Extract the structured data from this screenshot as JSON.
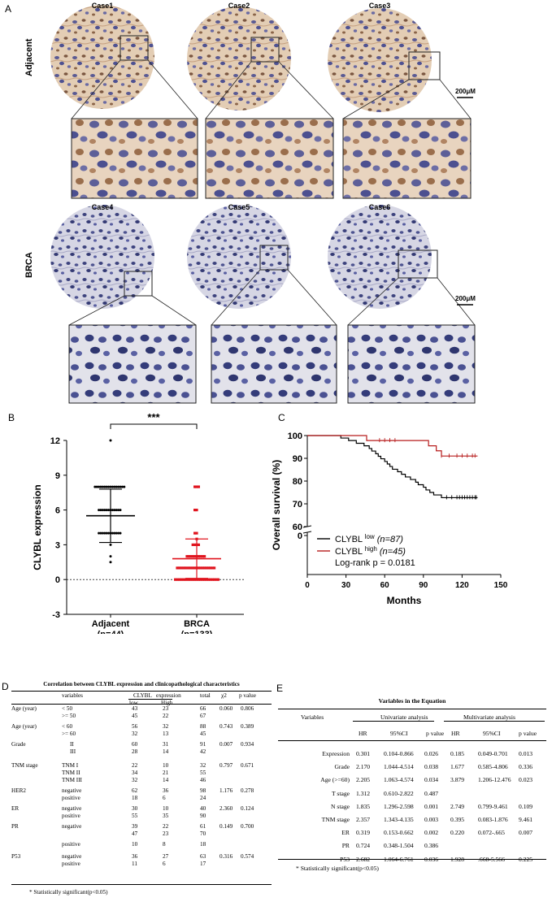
{
  "panelA": {
    "label": "A",
    "row_labels": [
      "Adjacent",
      "BRCA"
    ],
    "cases": [
      "Case1",
      "Case2",
      "Case3",
      "Case4",
      "Case5",
      "Case6"
    ],
    "scale_bar": "200μM"
  },
  "panelB": {
    "label": "B"
  },
  "panelC": {
    "label": "C"
  },
  "panelD": {
    "label": "D",
    "title": "Correlation between CLYBL expression and clinicopathological characteristics",
    "headers": {
      "variables": "variables",
      "clybl": "CLYBL",
      "expression": "expression",
      "low": "low",
      "high": "High",
      "total": "total",
      "chi2": "χ2",
      "p": "p value"
    },
    "rows": [
      {
        "group": "Age (year)",
        "var": "< 50",
        "low": "43",
        "high": "23",
        "total": "66",
        "chi2": "0.060",
        "p": "0.806"
      },
      {
        "group": "",
        "var": ">= 50",
        "low": "45",
        "high": "22",
        "total": "67",
        "chi2": "",
        "p": ""
      },
      {
        "group": "Age (year)",
        "var": "< 60",
        "low": "56",
        "high": "32",
        "total": "88",
        "chi2": "0.743",
        "p": "0.389"
      },
      {
        "group": "",
        "var": ">= 60",
        "low": "32",
        "high": "13",
        "total": "45",
        "chi2": "",
        "p": ""
      },
      {
        "group": "Grade",
        "var": "II",
        "low": "60",
        "high": "31",
        "total": "91",
        "chi2": "0.007",
        "p": "0.934"
      },
      {
        "group": "",
        "var": "III",
        "low": "28",
        "high": "14",
        "total": "42",
        "chi2": "",
        "p": ""
      },
      {
        "group": "TNM stage",
        "var": "TNM I",
        "low": "22",
        "high": "10",
        "total": "32",
        "chi2": "0.797",
        "p": "0.671"
      },
      {
        "group": "",
        "var": "TNM II",
        "low": "34",
        "high": "21",
        "total": "55",
        "chi2": "",
        "p": ""
      },
      {
        "group": "",
        "var": "TNM III",
        "low": "32",
        "high": "14",
        "total": "46",
        "chi2": "",
        "p": ""
      },
      {
        "group": "HER2",
        "var": "negative",
        "low": "62",
        "high": "36",
        "total": "98",
        "chi2": "1.176",
        "p": "0.278"
      },
      {
        "group": "",
        "var": "positive",
        "low": "18",
        "high": "6",
        "total": "24",
        "chi2": "",
        "p": ""
      },
      {
        "group": "ER",
        "var": "negative",
        "low": "30",
        "high": "10",
        "total": "40",
        "chi2": "2.360",
        "p": "0.124"
      },
      {
        "group": "",
        "var": "positive",
        "low": "55",
        "high": "35",
        "total": "90",
        "chi2": "",
        "p": ""
      },
      {
        "group": "PR",
        "var": "negative",
        "low": "39",
        "high": "22",
        "total": "61",
        "chi2": "0.149",
        "p": "0.700"
      },
      {
        "group": "",
        "var": "",
        "low": "47",
        "high": "23",
        "total": "70",
        "chi2": "",
        "p": ""
      },
      {
        "group": "",
        "var": "positive",
        "low": "10",
        "high": "8",
        "total": "18",
        "chi2": "",
        "p": ""
      },
      {
        "group": "P53",
        "var": "negative",
        "low": "36",
        "high": "27",
        "total": "63",
        "chi2": "0.316",
        "p": "0.574"
      },
      {
        "group": "",
        "var": "positive",
        "low": "11",
        "high": "6",
        "total": "17",
        "chi2": "",
        "p": ""
      }
    ],
    "footnote": "* Statistically significant(p<0.05)"
  },
  "panelE": {
    "label": "E",
    "title": "Variables in the Equation",
    "headers": {
      "variables": "Variables",
      "uni": "Univariate analysis",
      "multi": "Multivariate analysis",
      "hr": "HR",
      "ci": "95%CI",
      "p": "p value"
    },
    "rows": [
      {
        "var": "Expression",
        "hr1": "0.301",
        "ci1": "0.104-0.866",
        "p1": "0.026",
        "hr2": "0.185",
        "ci2": "0.049-0.701",
        "p2": "0.013"
      },
      {
        "var": "Grade",
        "hr1": "2.170",
        "ci1": "1.044-4.514",
        "p1": "0.038",
        "hr2": "1.677",
        "ci2": "0.585-4.806",
        "p2": "0.336"
      },
      {
        "var": "Age (>=60)",
        "hr1": "2.205",
        "ci1": "1.063-4.574",
        "p1": "0.034",
        "hr2": "3.879",
        "ci2": "1.206-12.476",
        "p2": "0.023"
      },
      {
        "var": "T stage",
        "hr1": "1.312",
        "ci1": "0.610-2.822",
        "p1": "0.487",
        "hr2": "",
        "ci2": "",
        "p2": ""
      },
      {
        "var": "N stage",
        "hr1": "1.835",
        "ci1": "1.296-2.598",
        "p1": "0.001",
        "hr2": "2.749",
        "ci2": "0.799-9.461",
        "p2": "0.109"
      },
      {
        "var": "TNM stage",
        "hr1": "2.357",
        "ci1": "1.343-4.135",
        "p1": "0.003",
        "hr2": "0.395",
        "ci2": "0.083-1.876",
        "p2": "9.461"
      },
      {
        "var": "ER",
        "hr1": "0.319",
        "ci1": "0.153-0.662",
        "p1": "0.002",
        "hr2": "0.220",
        "ci2": "0.072-.665",
        "p2": "0.007"
      },
      {
        "var": "PR",
        "hr1": "0.724",
        "ci1": "0.348-1.504",
        "p1": "0.386",
        "hr2": "",
        "ci2": "",
        "p2": ""
      },
      {
        "var": "P53",
        "hr1": "2.682",
        "ci1": "1.064-6.761",
        "p1": "0.036",
        "hr2": "1.928",
        "ci2": ".668-5.566",
        "p2": "0.225"
      }
    ],
    "footnote": "* Statistically significant(p<0.05)"
  },
  "chart_data": [
    {
      "type": "scatter",
      "panel": "B",
      "ylabel": "CLYBL expression",
      "ylim": [
        -3,
        12
      ],
      "yticks": [
        "12",
        "9",
        "6",
        "3",
        "0",
        "-3"
      ],
      "categories": [
        "Adjacent\n(n=44)",
        "BRCA\n(n=133)"
      ],
      "category_names": [
        "Adjacent",
        "BRCA"
      ],
      "category_ns": [
        "(n=44)",
        "(n=133)"
      ],
      "significance": "***",
      "series": [
        {
          "name": "Adjacent",
          "color": "#000000",
          "mean": 5.5,
          "sd_low": 3.2,
          "sd_high": 7.8,
          "values": [
            12,
            8,
            8,
            8,
            8,
            8,
            8,
            8,
            8,
            8,
            8,
            8,
            8,
            8,
            8,
            8,
            8,
            6,
            6,
            6,
            6,
            6,
            6,
            6,
            6,
            6,
            6,
            6,
            6,
            4,
            4,
            4,
            4,
            4,
            4,
            4,
            4,
            4,
            4,
            4,
            4,
            3,
            2,
            1.5
          ]
        },
        {
          "name": "BRCA",
          "color": "#e0141e",
          "mean": 1.8,
          "sd_low": 0.1,
          "sd_high": 3.5,
          "values": [
            8,
            8,
            8,
            6,
            6,
            4,
            4,
            3.5,
            3,
            3,
            3,
            3,
            2,
            2,
            2,
            2,
            2,
            2,
            2,
            2,
            2,
            2,
            1,
            1,
            1,
            1,
            1,
            1,
            1,
            1,
            1,
            1,
            1,
            1,
            1,
            1,
            1,
            1,
            1,
            1,
            1,
            1,
            0,
            0,
            0,
            0,
            0,
            0,
            0,
            0,
            0,
            0,
            0,
            0,
            0,
            0,
            0,
            0,
            0,
            0,
            0,
            0,
            0,
            0,
            0
          ]
        }
      ]
    },
    {
      "type": "line",
      "panel": "C",
      "xlabel": "Months",
      "ylabel": "Overall survival (%)",
      "xlim": [
        0,
        150
      ],
      "ylim_display": [
        60,
        100
      ],
      "xticks": [
        "0",
        "30",
        "60",
        "90",
        "120",
        "150"
      ],
      "yticks": [
        "100",
        "90",
        "80",
        "70",
        "60",
        "0"
      ],
      "annotation": "Log-rank p = 0.0181",
      "series": [
        {
          "name": "CLYBL low (n=87)",
          "label_main": "CLYBL",
          "label_sup": "low",
          "label_n": "(n=87)",
          "color": "#000000",
          "steps": [
            [
              0,
              100
            ],
            [
              24,
              100
            ],
            [
              26,
              98.9
            ],
            [
              32,
              97.8
            ],
            [
              38,
              96.6
            ],
            [
              44,
              95.5
            ],
            [
              48,
              94.3
            ],
            [
              50,
              93.2
            ],
            [
              53,
              92.0
            ],
            [
              55,
              90.9
            ],
            [
              57,
              89.8
            ],
            [
              60,
              88.6
            ],
            [
              62,
              87.5
            ],
            [
              64,
              86.4
            ],
            [
              66,
              85.2
            ],
            [
              70,
              84.1
            ],
            [
              73,
              83.0
            ],
            [
              76,
              81.8
            ],
            [
              80,
              80.7
            ],
            [
              84,
              79.5
            ],
            [
              86,
              78.4
            ],
            [
              90,
              77.3
            ],
            [
              92,
              76.1
            ],
            [
              95,
              75.0
            ],
            [
              98,
              73.9
            ],
            [
              104,
              72.7
            ],
            [
              106,
              72.7
            ],
            [
              132,
              72.7
            ]
          ]
        },
        {
          "name": "CLYBL high (n=45)",
          "label_main": "CLYBL",
          "label_sup": "high",
          "label_n": "(n=45)",
          "color": "#b71c1c",
          "steps": [
            [
              0,
              100
            ],
            [
              44,
              100
            ],
            [
              46,
              97.8
            ],
            [
              92,
              97.8
            ],
            [
              94,
              95.5
            ],
            [
              100,
              93.3
            ],
            [
              104,
              91.0
            ],
            [
              132,
              91.0
            ]
          ]
        }
      ]
    }
  ]
}
